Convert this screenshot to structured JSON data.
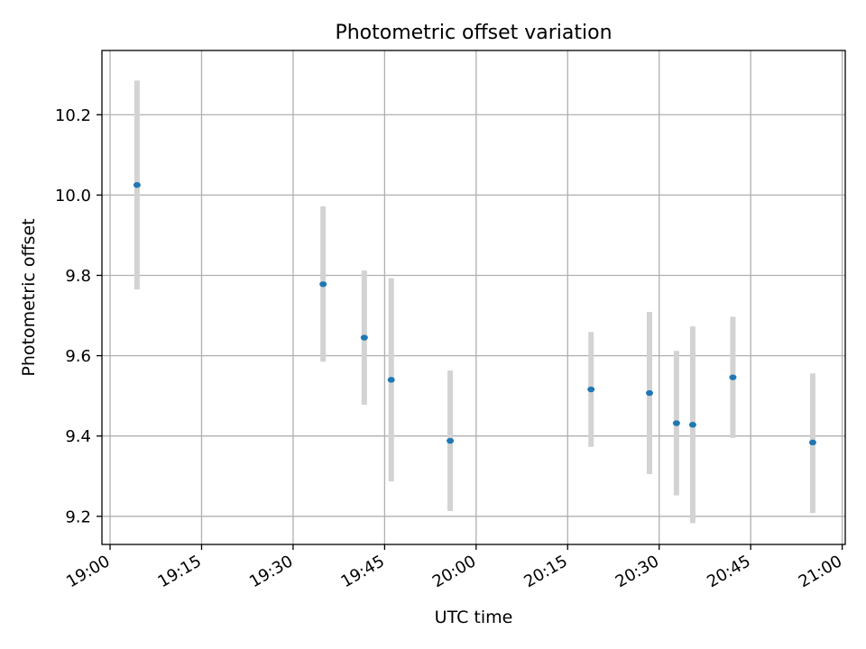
{
  "chart_data": {
    "type": "scatter",
    "title": "Photometric offset variation",
    "xlabel": "UTC time",
    "ylabel": "Photometric offset",
    "x_ticks": [
      "19:00",
      "19:15",
      "19:30",
      "19:45",
      "20:00",
      "20:15",
      "20:30",
      "20:45",
      "21:00"
    ],
    "y_ticks": [
      "9.2",
      "9.4",
      "9.6",
      "9.8",
      "10.0",
      "10.2"
    ],
    "xlim": [
      "18:58:40",
      "21:00:30"
    ],
    "ylim": [
      9.13,
      10.36
    ],
    "grid": true,
    "colors": {
      "point": "#1f77b4",
      "errorbar": "#d3d3d3",
      "grid": "#b0b0b0"
    },
    "points": [
      {
        "t": "19:04:25",
        "y": 10.025,
        "err_low": 9.765,
        "err_high": 10.285
      },
      {
        "t": "19:34:55",
        "y": 9.778,
        "err_low": 9.585,
        "err_high": 9.972
      },
      {
        "t": "19:41:40",
        "y": 9.645,
        "err_low": 9.478,
        "err_high": 9.812
      },
      {
        "t": "19:46:05",
        "y": 9.54,
        "err_low": 9.287,
        "err_high": 9.793
      },
      {
        "t": "19:55:45",
        "y": 9.388,
        "err_low": 9.213,
        "err_high": 9.563
      },
      {
        "t": "20:18:50",
        "y": 9.516,
        "err_low": 9.373,
        "err_high": 9.659
      },
      {
        "t": "20:28:25",
        "y": 9.507,
        "err_low": 9.305,
        "err_high": 9.709
      },
      {
        "t": "20:32:50",
        "y": 9.432,
        "err_low": 9.252,
        "err_high": 9.612
      },
      {
        "t": "20:35:30",
        "y": 9.428,
        "err_low": 9.183,
        "err_high": 9.673
      },
      {
        "t": "20:42:05",
        "y": 9.546,
        "err_low": 9.395,
        "err_high": 9.697
      },
      {
        "t": "20:55:10",
        "y": 9.384,
        "err_low": 9.208,
        "err_high": 9.556
      }
    ]
  }
}
